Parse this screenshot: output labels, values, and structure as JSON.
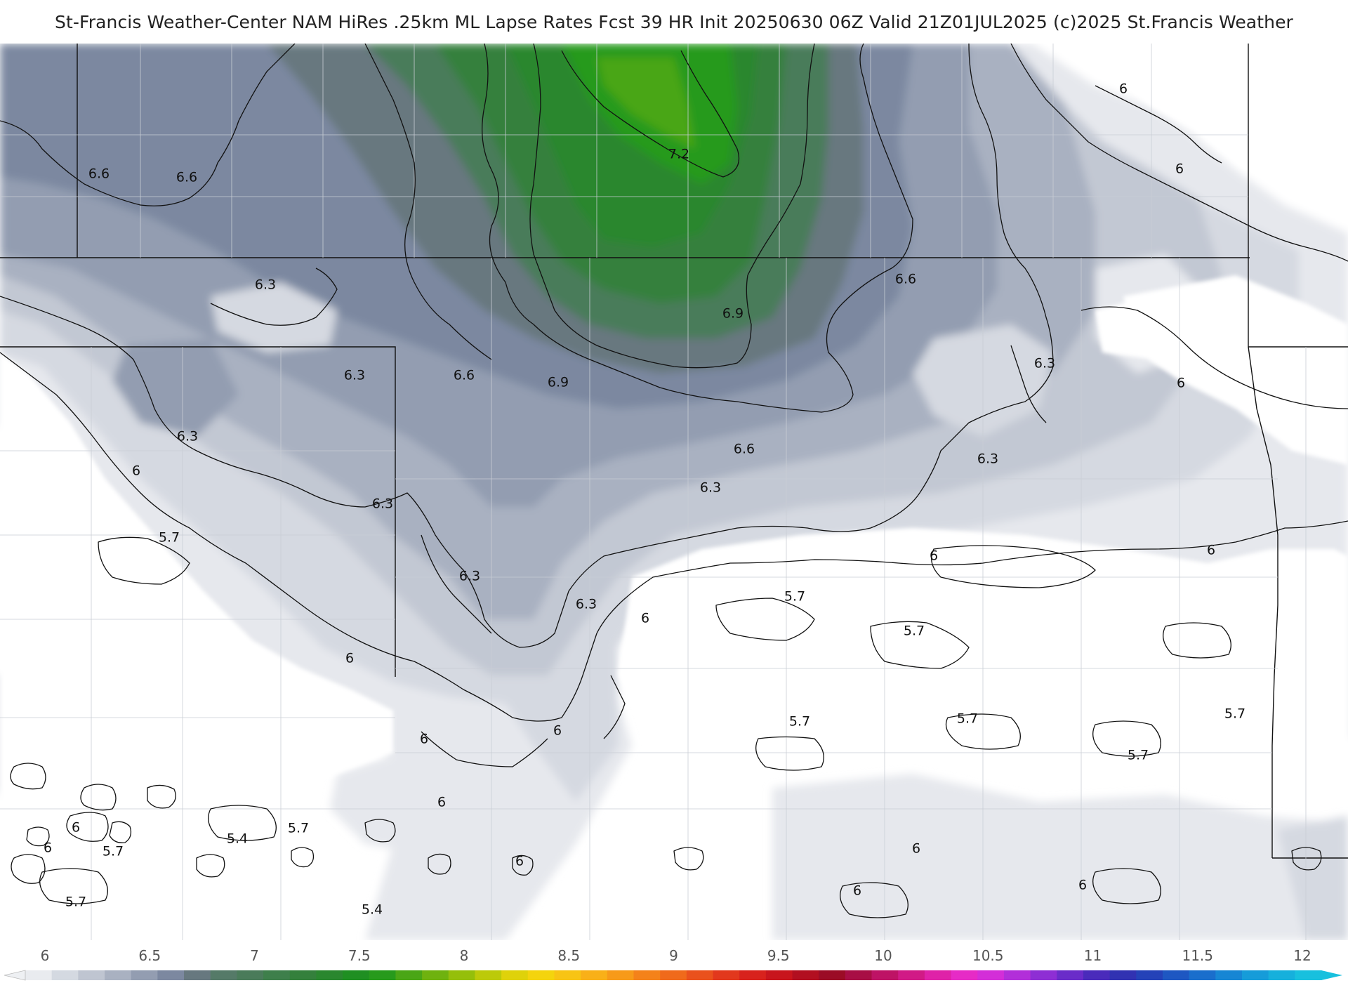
{
  "title": "St-Francis Weather-Center NAM HiRes .25km ML Lapse Rates  Fcst 39 HR Init 20250630 06Z  Valid 21Z01JUL2025    (c)2025 St.Francis Weather",
  "colorbar": {
    "ticks": [
      "6",
      "6.5",
      "7",
      "7.5",
      "8",
      "8.5",
      "9",
      "9.5",
      "10",
      "10.5",
      "11",
      "11.5",
      "12"
    ],
    "colors": [
      "#e9ebef",
      "#d4d9e1",
      "#bfc5d1",
      "#a9b1c1",
      "#939db1",
      "#7c88a0",
      "#67787f",
      "#557a68",
      "#4a7b5a",
      "#3e7f4b",
      "#34803c",
      "#2a872f",
      "#1f8f22",
      "#279a1c",
      "#4aa616",
      "#6fb20f",
      "#95bf0a",
      "#bcca09",
      "#dfd20a",
      "#f4d40d",
      "#f8c414",
      "#f9b018",
      "#f79a19",
      "#f4821a",
      "#f06a1b",
      "#ea511d",
      "#e2381d",
      "#d8221d",
      "#c8151d",
      "#b20f20",
      "#9b0c26",
      "#a80e45",
      "#be1365",
      "#d11a86",
      "#df22a8",
      "#e62bc6",
      "#d32ed8",
      "#b22fd9",
      "#8e2ed4",
      "#6a2cc9",
      "#4a2bbb",
      "#3132b2",
      "#2442b8",
      "#1e57c2",
      "#1a6ecc",
      "#1786d4",
      "#169cd9",
      "#16b0dc",
      "#18c0de"
    ]
  },
  "contour_labels": [
    {
      "text": "6.6"
    },
    {
      "text": "6.6"
    },
    {
      "text": "7.2"
    },
    {
      "text": "6"
    },
    {
      "text": "6"
    },
    {
      "text": "6.3"
    },
    {
      "text": "6.6"
    },
    {
      "text": "6.3"
    },
    {
      "text": "6.6"
    },
    {
      "text": "6.9"
    },
    {
      "text": "6.9"
    },
    {
      "text": "6.3"
    },
    {
      "text": "6"
    },
    {
      "text": "6.3"
    },
    {
      "text": "6.6"
    },
    {
      "text": "6.3"
    },
    {
      "text": "6.3"
    },
    {
      "text": "6"
    },
    {
      "text": "6.3"
    },
    {
      "text": "5.7"
    },
    {
      "text": "6"
    },
    {
      "text": "6"
    },
    {
      "text": "6.3"
    },
    {
      "text": "6.3"
    },
    {
      "text": "6"
    },
    {
      "text": "5.7"
    },
    {
      "text": "5.7"
    },
    {
      "text": "6"
    },
    {
      "text": "6"
    },
    {
      "text": "5.7"
    },
    {
      "text": "5.7"
    },
    {
      "text": "5.7"
    },
    {
      "text": "5.7"
    },
    {
      "text": "6"
    },
    {
      "text": "6"
    },
    {
      "text": "6"
    },
    {
      "text": "5.7"
    },
    {
      "text": "5.4"
    },
    {
      "text": "6"
    },
    {
      "text": "5.7"
    },
    {
      "text": "5.7"
    },
    {
      "text": "6"
    },
    {
      "text": "6"
    },
    {
      "text": "6"
    },
    {
      "text": "6"
    },
    {
      "text": "5.4"
    }
  ]
}
